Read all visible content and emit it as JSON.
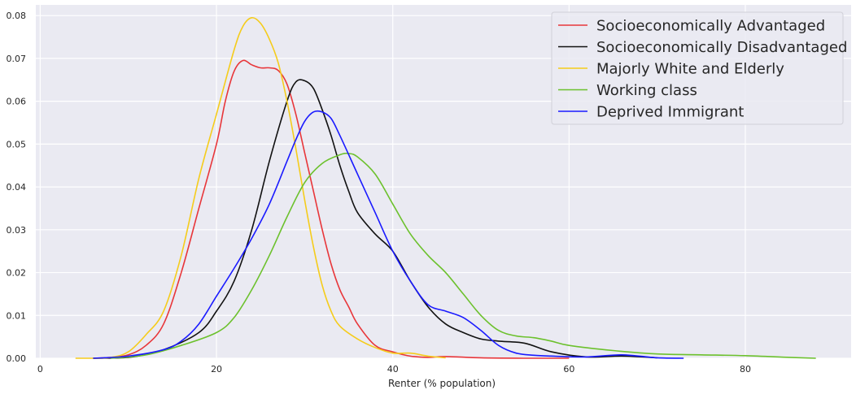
{
  "chart_data": {
    "type": "line",
    "title": "",
    "xlabel": "Renter (% population)",
    "ylabel": "",
    "xlim": [
      -0.5,
      92
    ],
    "ylim": [
      0,
      0.0825
    ],
    "xticks": [
      "0",
      "20",
      "40",
      "60",
      "80"
    ],
    "xtick_values": [
      0,
      20,
      40,
      60,
      80
    ],
    "yticks": [
      "0.00",
      "0.01",
      "0.02",
      "0.03",
      "0.04",
      "0.05",
      "0.06",
      "0.07",
      "0.08"
    ],
    "ytick_values": [
      0,
      0.01,
      0.02,
      0.03,
      0.04,
      0.05,
      0.06,
      0.07,
      0.08
    ],
    "grid": true,
    "legend_position": "top-right",
    "series": [
      {
        "name": "Socioeconomically  Advantaged",
        "color": "#e8363a",
        "x": [
          6,
          8,
          10,
          12,
          14,
          16,
          18,
          20,
          21,
          22,
          23,
          24,
          25,
          26,
          27,
          28,
          29,
          30,
          31,
          32,
          33,
          34,
          35,
          36,
          38,
          40,
          42,
          44,
          46,
          50,
          55,
          60
        ],
        "y": [
          0,
          0.0002,
          0.0008,
          0.003,
          0.008,
          0.02,
          0.035,
          0.05,
          0.06,
          0.067,
          0.0695,
          0.0685,
          0.0678,
          0.0678,
          0.0672,
          0.064,
          0.057,
          0.048,
          0.039,
          0.03,
          0.022,
          0.016,
          0.012,
          0.008,
          0.003,
          0.0015,
          0.0005,
          0.0002,
          0.0004,
          0.0001,
          0,
          0
        ]
      },
      {
        "name": "Socioeconomically Disadvantaged",
        "color": "#111111",
        "x": [
          6,
          10,
          14,
          18,
          20,
          22,
          24,
          26,
          28,
          29,
          30,
          31,
          32,
          33,
          34,
          35,
          36,
          38,
          40,
          42,
          44,
          46,
          48,
          50,
          52,
          55,
          58,
          62,
          66,
          70
        ],
        "y": [
          0,
          0.0002,
          0.002,
          0.006,
          0.011,
          0.018,
          0.03,
          0.046,
          0.06,
          0.0645,
          0.0648,
          0.063,
          0.058,
          0.052,
          0.045,
          0.039,
          0.034,
          0.029,
          0.025,
          0.018,
          0.012,
          0.008,
          0.006,
          0.0045,
          0.004,
          0.0035,
          0.0015,
          0.0003,
          0.0005,
          0.0001
        ]
      },
      {
        "name": "Majorly White and Elderly",
        "color": "#f5cc1b",
        "x": [
          4,
          6,
          8,
          10,
          12,
          14,
          16,
          18,
          20,
          22,
          23,
          24,
          25,
          26,
          27,
          28,
          29,
          30,
          31,
          32,
          33,
          34,
          36,
          38,
          40,
          42,
          44,
          46
        ],
        "y": [
          0,
          0,
          0.0002,
          0.0015,
          0.0055,
          0.011,
          0.024,
          0.042,
          0.057,
          0.072,
          0.0775,
          0.0795,
          0.0782,
          0.0745,
          0.069,
          0.06,
          0.049,
          0.037,
          0.026,
          0.017,
          0.011,
          0.0075,
          0.0045,
          0.0025,
          0.0012,
          0.0012,
          0.0005,
          0.0001
        ]
      },
      {
        "name": "Working class",
        "color": "#6cc12d",
        "x": [
          8,
          12,
          16,
          20,
          22,
          24,
          26,
          28,
          30,
          32,
          34,
          35,
          36,
          38,
          40,
          42,
          44,
          46,
          48,
          50,
          52,
          54,
          56,
          58,
          60,
          65,
          70,
          75,
          80,
          85,
          88
        ],
        "y": [
          0,
          0.0008,
          0.003,
          0.006,
          0.0095,
          0.016,
          0.024,
          0.033,
          0.041,
          0.0455,
          0.0475,
          0.0478,
          0.047,
          0.043,
          0.036,
          0.029,
          0.024,
          0.02,
          0.015,
          0.01,
          0.0065,
          0.0052,
          0.0048,
          0.004,
          0.003,
          0.0018,
          0.001,
          0.0008,
          0.0006,
          0.0002,
          0
        ]
      },
      {
        "name": "Deprived Immigrant",
        "color": "#1a1aff",
        "x": [
          6,
          10,
          14,
          16,
          18,
          20,
          22,
          24,
          26,
          28,
          29,
          30,
          31,
          32,
          33,
          34,
          36,
          38,
          40,
          42,
          44,
          46,
          48,
          50,
          52,
          54,
          56,
          58,
          62,
          66,
          70,
          73
        ],
        "y": [
          0,
          0.0005,
          0.002,
          0.004,
          0.008,
          0.0145,
          0.021,
          0.028,
          0.036,
          0.046,
          0.051,
          0.0553,
          0.0575,
          0.0575,
          0.056,
          0.052,
          0.043,
          0.034,
          0.025,
          0.018,
          0.0125,
          0.011,
          0.0095,
          0.0065,
          0.003,
          0.0012,
          0.0007,
          0.0005,
          0.0003,
          0.0008,
          0.0001,
          0
        ]
      }
    ]
  }
}
